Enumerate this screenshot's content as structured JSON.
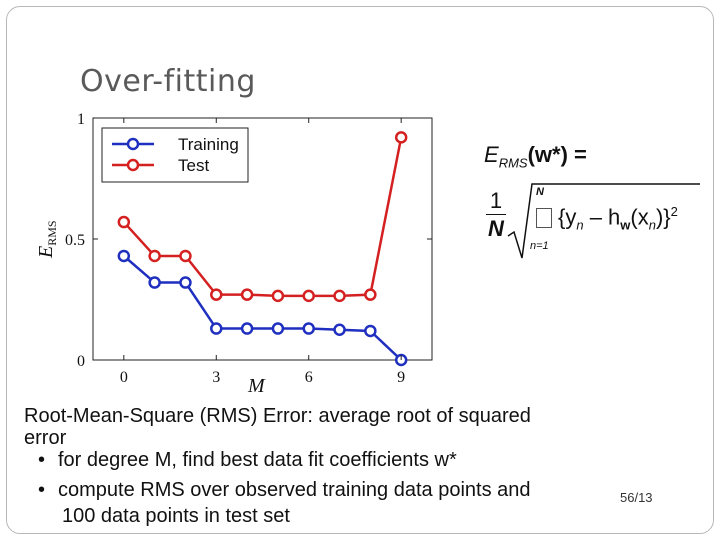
{
  "slide": {
    "title": "Over-fitting",
    "text_main": "Root-Mean-Square (RMS) Error: average root of squared",
    "text_error": "error",
    "bullet1": "for degree M, find best data fit coefficients w*",
    "bullet2": "compute RMS over observed training data points and",
    "bullet2_cont": "100 data points in test set",
    "bullet_symbol": "•",
    "page_number": "56/13"
  },
  "formula": {
    "lhs": "E",
    "lhs_sub": "RMS",
    "lhs_arg": "(w*) =",
    "frac_num": "1",
    "frac_den": "N",
    "sum_top": "N",
    "sum_bottom": "n=1",
    "expr_open": "{y",
    "expr_y_sub": "n",
    "expr_mid": " – h",
    "expr_h_sub": "w",
    "expr_arg": "(x",
    "expr_x_sub": "n",
    "expr_close": ")}",
    "expr_pow": "2"
  },
  "chart_data": {
    "type": "line",
    "xlabel": "M",
    "ylabel": "E",
    "ylabel_sub": "RMS",
    "xlim": [
      -1,
      10
    ],
    "ylim": [
      0,
      1
    ],
    "x_ticks": [
      "0",
      "3",
      "6",
      "9"
    ],
    "y_ticks": [
      "0",
      "0.5",
      "1"
    ],
    "x": [
      0,
      1,
      2,
      3,
      4,
      5,
      6,
      7,
      8,
      9
    ],
    "series": [
      {
        "name": "Training",
        "color": "#1f2fbf",
        "values": [
          0.43,
          0.32,
          0.32,
          0.13,
          0.13,
          0.13,
          0.13,
          0.125,
          0.12,
          0.0
        ]
      },
      {
        "name": "Test",
        "color": "#d42020",
        "values": [
          0.57,
          0.43,
          0.43,
          0.27,
          0.27,
          0.265,
          0.265,
          0.265,
          0.27,
          0.92
        ]
      }
    ],
    "legend": "top-left"
  }
}
